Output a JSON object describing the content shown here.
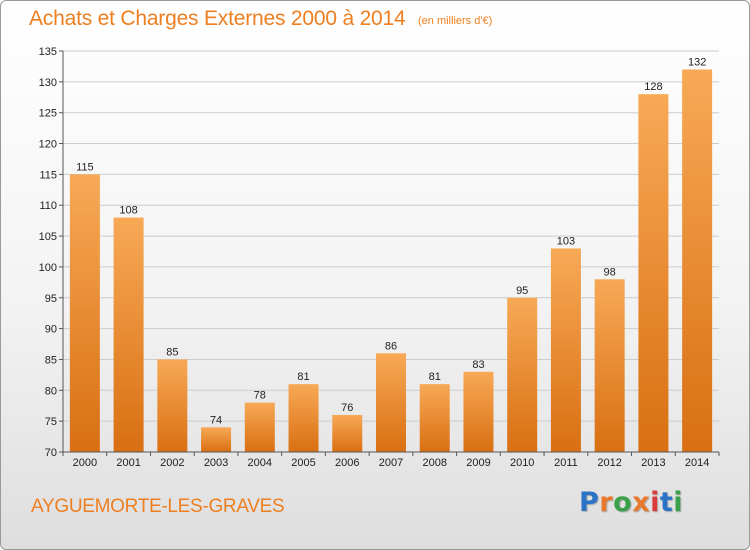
{
  "header": {
    "title": "Achats et Charges Externes 2000 à 2014",
    "subtitle": "(en milliers d'€)"
  },
  "footer": {
    "town": "AYGUEMORTE-LES-GRAVES",
    "logo": "Proxiti",
    "logo_colors": [
      "#2a73c6",
      "#e8792a",
      "#3aa04a",
      "#e8792a",
      "#d93a3a",
      "#2a73c6",
      "#3aa04a"
    ]
  },
  "colors": {
    "bar_light": "#f7a956",
    "bar_dark": "#d96f12",
    "accent": "#ee7f20",
    "grid": "#cccccc"
  },
  "chart_data": {
    "type": "bar",
    "categories": [
      "2000",
      "2001",
      "2002",
      "2003",
      "2004",
      "2005",
      "2006",
      "2007",
      "2008",
      "2009",
      "2010",
      "2011",
      "2012",
      "2013",
      "2014"
    ],
    "values": [
      115,
      108,
      85,
      74,
      78,
      81,
      76,
      86,
      81,
      83,
      95,
      103,
      98,
      128,
      132
    ],
    "data_labels": [
      "115",
      "108",
      "85",
      "74",
      "78",
      "81",
      "76",
      "86",
      "81",
      "83",
      "95",
      "103",
      "98",
      "128",
      "132"
    ],
    "yticks": [
      70,
      75,
      80,
      85,
      90,
      95,
      100,
      105,
      110,
      115,
      120,
      125,
      130,
      135
    ],
    "ytick_labels": [
      "70",
      "75",
      "80",
      "85",
      "90",
      "95",
      "100",
      "105",
      "110",
      "115",
      "120",
      "125",
      "130",
      "135"
    ],
    "ylim": [
      70,
      135
    ],
    "grid": true,
    "title": "Achats et Charges Externes 2000 à 2014",
    "xlabel": "",
    "ylabel": ""
  }
}
